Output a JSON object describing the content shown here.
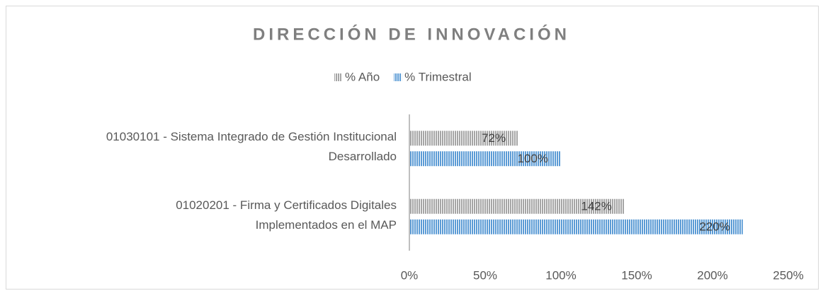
{
  "chart_data": {
    "type": "hbar",
    "title": "DIRECCIÓN DE INNOVACIÓN",
    "categories": [
      "01030101 - Sistema Integrado de Gestión Institucional\nDesarrollado",
      "01020201 - Firma y Certificados Digitales\nImplementados en el MAP"
    ],
    "series": [
      {
        "name": "% Año",
        "color": "#a5a5a5",
        "values": [
          72,
          142
        ],
        "value_labels": [
          "72%",
          "142%"
        ]
      },
      {
        "name": "% Trimestral",
        "color": "#5b9bd5",
        "values": [
          100,
          220
        ],
        "value_labels": [
          "100%",
          "220%"
        ]
      }
    ],
    "xlim": [
      0,
      250
    ],
    "xticks": [
      {
        "value": 0,
        "label": "0%"
      },
      {
        "value": 50,
        "label": "50%"
      },
      {
        "value": 100,
        "label": "100%"
      },
      {
        "value": 150,
        "label": "150%"
      },
      {
        "value": 200,
        "label": "200%"
      },
      {
        "value": 250,
        "label": "250%"
      }
    ],
    "legend": "top",
    "grid": false
  }
}
